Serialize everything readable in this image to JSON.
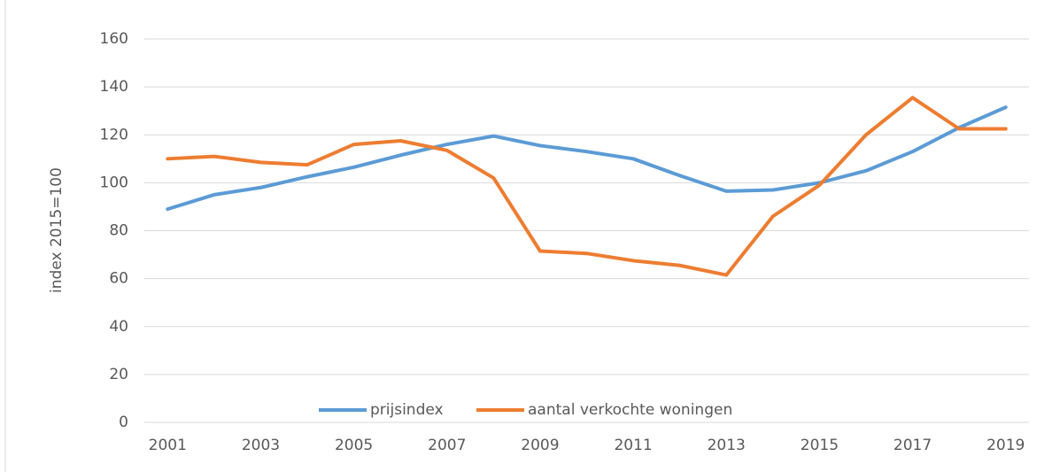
{
  "chart_data": {
    "type": "line",
    "y_label": "index  2015=100",
    "categories": [
      "2001",
      null,
      "2003",
      null,
      "2005",
      null,
      "2007",
      null,
      "2009",
      null,
      "2011",
      null,
      "2013",
      null,
      "2015",
      null,
      "2017",
      null,
      "2019"
    ],
    "series": [
      {
        "name": "prijsindex",
        "color": "#5b9bd5",
        "values": [
          89,
          95,
          98,
          102.5,
          106.5,
          111.5,
          116,
          119.5,
          115.5,
          113,
          110,
          103,
          96.5,
          97,
          100,
          105,
          113,
          123,
          131.5
        ]
      },
      {
        "name": "aantal verkochte woningen",
        "color": "#ed7d31",
        "values": [
          110,
          111,
          108.5,
          107.5,
          116,
          117.5,
          113.5,
          102,
          71.5,
          70.5,
          67.5,
          65.5,
          61.5,
          86,
          99,
          120,
          135.5,
          122.5,
          122.5
        ]
      }
    ],
    "ylim": [
      0,
      160
    ],
    "yticks": [
      0,
      20,
      40,
      60,
      80,
      100,
      120,
      140,
      160
    ],
    "grid": true,
    "legend": "bottom"
  }
}
